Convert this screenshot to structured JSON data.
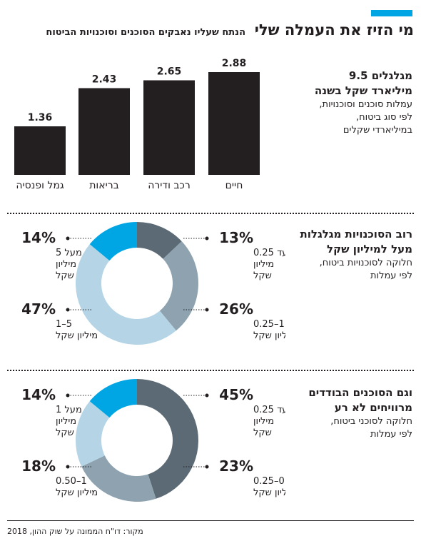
{
  "header": {
    "title": "מי הזיז את העמלה שלי",
    "subtitle": "הנתח שעליו נאבקים הסוכנים וסוכנויות הביטוח",
    "accent_color": "#00a6e3"
  },
  "sections": {
    "bars": {
      "title_line1": "מגלגלים 9.5",
      "title_line2": "מיליארד שקל בשנה",
      "desc_line1": "עמלות סוכנים וסוכנויות,",
      "desc_line2": "לפי סוג ביטוח,",
      "desc_line3": "במיליארדי שקלים"
    },
    "agencies": {
      "title_line1": "רוב הסוכנויות מגלגלות",
      "title_line2": "מעל למיליון שקל",
      "desc_line1": "חלוקה לסוכנויות ביטוח,",
      "desc_line2": "לפי עמלות"
    },
    "agents": {
      "title_line1": "וגם הסוכנים הבודדים",
      "title_line2": "מרוויחים לא רע",
      "desc_line1": "חלוקה לסוכני ביטוח,",
      "desc_line2": "לפי עמלות"
    }
  },
  "footer": {
    "source": "מקור: דו\"ח הממונה על שוק ההון, 2018"
  },
  "chart_data": [
    {
      "type": "bar",
      "categories": [
        "חיים",
        "רכב ודירה",
        "בריאות",
        "גמל ופנסיה"
      ],
      "values": [
        2.88,
        2.65,
        2.43,
        1.36
      ],
      "value_labels": [
        "2.88",
        "2.65",
        "2.43",
        "1.36"
      ],
      "ylim": [
        0,
        3
      ],
      "color": "#231f20"
    },
    {
      "type": "pie",
      "slices": [
        {
          "value": 13,
          "pct_label": "13%",
          "label_lines": [
            "עד 0.25",
            "מיליון",
            "שקל"
          ],
          "color": "#5b6a74"
        },
        {
          "value": 26,
          "pct_label": "26%",
          "label_lines": [
            "1–0.25",
            "מיליון שקל"
          ],
          "color": "#8ea2b0"
        },
        {
          "value": 47,
          "pct_label": "47%",
          "label_lines": [
            "5–1",
            "מיליון שקל"
          ],
          "color": "#b5d5e7"
        },
        {
          "value": 14,
          "pct_label": "14%",
          "label_lines": [
            "מעל 5",
            "מיליון",
            "שקל"
          ],
          "color": "#00a6e3"
        }
      ]
    },
    {
      "type": "pie",
      "slices": [
        {
          "value": 45,
          "pct_label": "45%",
          "label_lines": [
            "עד 0.25",
            "מיליון",
            "שקל"
          ],
          "color": "#5b6a74"
        },
        {
          "value": 23,
          "pct_label": "23%",
          "label_lines": [
            "0.50–0.25",
            "מיליון שקל"
          ],
          "color": "#8ea2b0"
        },
        {
          "value": 18,
          "pct_label": "18%",
          "label_lines": [
            "1–0.50",
            "מיליון שקל"
          ],
          "color": "#b5d5e7"
        },
        {
          "value": 14,
          "pct_label": "14%",
          "label_lines": [
            "מעל 1",
            "מיליון",
            "שקל"
          ],
          "color": "#00a6e3"
        }
      ]
    }
  ]
}
